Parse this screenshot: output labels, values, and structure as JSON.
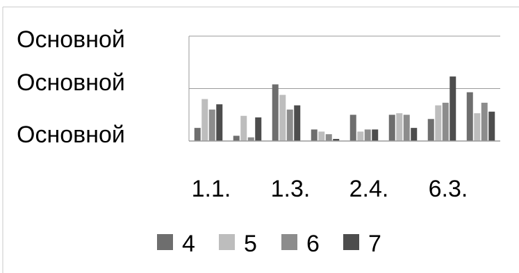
{
  "chart_data": {
    "type": "bar",
    "title": "",
    "xlabel": "",
    "ylabel": "",
    "ytick_labels": [
      "Основной",
      "Основной",
      "Основной"
    ],
    "xtick_labels": [
      "1.1.",
      "1.3.",
      "2.4.",
      "6.3."
    ],
    "ylim": [
      0,
      2
    ],
    "grid": true,
    "legend_position": "bottom",
    "series": [
      {
        "name": "4",
        "color": "#6e6e6e",
        "values": [
          0.25,
          0.1,
          1.08,
          0.22,
          0.5,
          0.5,
          0.42,
          0.93
        ]
      },
      {
        "name": "5",
        "color": "#bdbdbd",
        "values": [
          0.8,
          0.48,
          0.88,
          0.18,
          0.18,
          0.53,
          0.68,
          0.53
        ]
      },
      {
        "name": "6",
        "color": "#8c8c8c",
        "values": [
          0.6,
          0.07,
          0.6,
          0.13,
          0.22,
          0.5,
          0.73,
          0.73
        ]
      },
      {
        "name": "7",
        "color": "#4d4d4d",
        "values": [
          0.7,
          0.45,
          0.68,
          0.04,
          0.22,
          0.25,
          1.23,
          0.56
        ]
      }
    ]
  }
}
